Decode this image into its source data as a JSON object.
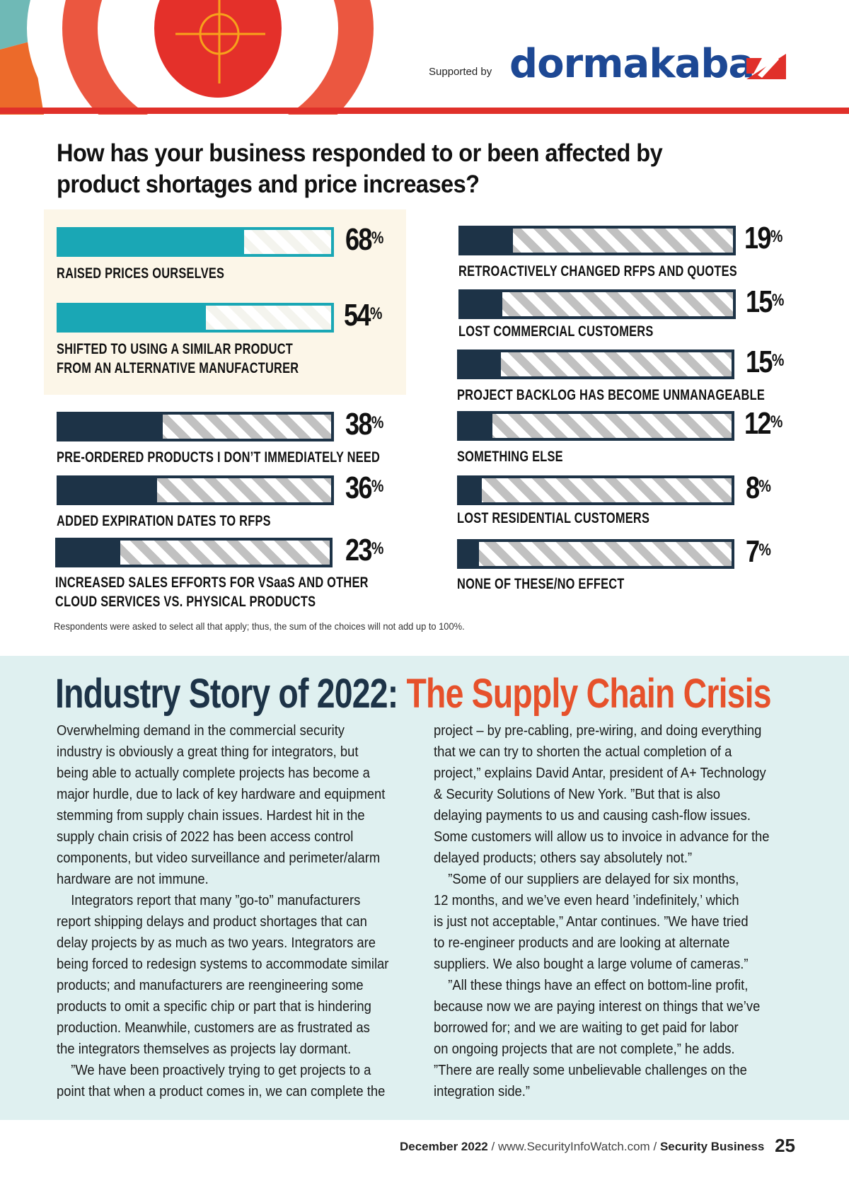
{
  "header": {
    "supported_by": "Supported by",
    "sponsor_logo": "dormakaba",
    "colors": {
      "rule": "#e0302a",
      "logo": "#1d4894",
      "target_red": "#e4302a",
      "target_ring": "#eb5740",
      "crosshair": "#f7a21b",
      "teal_corner": "#6fb9b6",
      "orange_corner": "#ec6a2a"
    }
  },
  "question": "How has your business responded to or been affected by product shortages and price increases?",
  "chart_data": {
    "type": "bar",
    "orientation": "horizontal",
    "title": "How has your business responded to or been affected by product shortages and price increases?",
    "unit": "%",
    "xlim": [
      0,
      100
    ],
    "grid": false,
    "legend": "none",
    "categories": [
      "RAISED PRICES OURSELVES",
      "SHIFTED TO USING A SIMILAR PRODUCT FROM AN ALTERNATIVE MANUFACTURER",
      "PRE-ORDERED PRODUCTS I DON’T IMMEDIATELY NEED",
      "ADDED EXPIRATION DATES TO RFPS",
      "INCREASED SALES EFFORTS FOR VSaaS AND OTHER CLOUD SERVICES VS. PHYSICAL PRODUCTS",
      "RETROACTIVELY CHANGED RFPS AND QUOTES",
      "LOST COMMERCIAL CUSTOMERS",
      "PROJECT BACKLOG HAS BECOME UNMANAGEABLE",
      "SOMETHING ELSE",
      "LOST RESIDENTIAL CUSTOMERS",
      "NONE OF THESE/NO EFFECT"
    ],
    "values": [
      68,
      54,
      38,
      36,
      23,
      19,
      15,
      15,
      12,
      8,
      7
    ],
    "highlighted": [
      true,
      true,
      false,
      false,
      false,
      false,
      false,
      false,
      false,
      false,
      false
    ],
    "colors": {
      "highlight": "#1aa7b5",
      "default": "#1d3347",
      "remainder_stripe": "#c1c1c1"
    },
    "footnote": "Respondents were asked to select all that apply; thus, the sum of the choices will not add up to 100%."
  },
  "bars_display": [
    {
      "pct": "68",
      "label_lines": [
        "RAISED PRICES OURSELVES"
      ]
    },
    {
      "pct": "54",
      "label_lines": [
        "SHIFTED TO USING A SIMILAR PRODUCT",
        "FROM AN ALTERNATIVE MANUFACTURER"
      ]
    },
    {
      "pct": "38",
      "label_lines": [
        "PRE-ORDERED PRODUCTS I DON’T IMMEDIATELY NEED"
      ]
    },
    {
      "pct": "36",
      "label_lines": [
        "ADDED EXPIRATION DATES TO RFPS"
      ]
    },
    {
      "pct": "23",
      "label_lines": [
        "INCREASED SALES EFFORTS FOR VSaaS AND OTHER",
        "CLOUD SERVICES VS. PHYSICAL PRODUCTS"
      ]
    },
    {
      "pct": "19",
      "label_lines": [
        "RETROACTIVELY CHANGED RFPS AND QUOTES"
      ]
    },
    {
      "pct": "15",
      "label_lines": [
        "LOST COMMERCIAL CUSTOMERS"
      ]
    },
    {
      "pct": "15",
      "label_lines": [
        "PROJECT BACKLOG HAS BECOME UNMANAGEABLE"
      ]
    },
    {
      "pct": "12",
      "label_lines": [
        "SOMETHING ELSE"
      ]
    },
    {
      "pct": "8",
      "label_lines": [
        "LOST RESIDENTIAL CUSTOMERS"
      ]
    },
    {
      "pct": "7",
      "label_lines": [
        "NONE OF THESE/NO EFFECT"
      ]
    }
  ],
  "percent_sign": "%",
  "story": {
    "title_part1": "Industry Story of 2022:",
    "title_part2": "The Supply Chain Crisis",
    "left_lines": [
      {
        "t": "Overwhelming demand in the commercial security",
        "i": false
      },
      {
        "t": "industry is obviously a great thing for integrators, but",
        "i": false
      },
      {
        "t": "being able to actually complete projects has become a",
        "i": false
      },
      {
        "t": "major hurdle, due to lack of key hardware and equipment",
        "i": false
      },
      {
        "t": "stemming from supply chain issues. Hardest hit in the",
        "i": false
      },
      {
        "t": "supply chain crisis of 2022 has been access control",
        "i": false
      },
      {
        "t": "components, but video surveillance and perimeter/alarm",
        "i": false
      },
      {
        "t": "hardware are not immune.",
        "i": false
      },
      {
        "t": "Integrators report that many ”go-to” manufacturers",
        "i": true
      },
      {
        "t": "report shipping delays and product shortages that can",
        "i": false
      },
      {
        "t": "delay projects by as much as two years. Integrators are",
        "i": false
      },
      {
        "t": "being forced to redesign systems to accommodate similar",
        "i": false
      },
      {
        "t": "products; and manufacturers are reengineering some",
        "i": false
      },
      {
        "t": "products to omit a specific chip or part that is hindering",
        "i": false
      },
      {
        "t": "production. Meanwhile, customers are as frustrated as",
        "i": false
      },
      {
        "t": "the integrators themselves as projects lay dormant.",
        "i": false
      },
      {
        "t": "”We have been proactively trying to get projects to a",
        "i": true
      },
      {
        "t": "point that when a product comes in, we can complete the",
        "i": false
      }
    ],
    "right_lines": [
      {
        "t": "project – by pre-cabling, pre-wiring, and doing everything",
        "i": false
      },
      {
        "t": "that we can try to shorten the actual completion of a",
        "i": false
      },
      {
        "t": "project,” explains David Antar, president of A+ Technology",
        "i": false
      },
      {
        "t": "& Security Solutions of New York. ”But that is also",
        "i": false
      },
      {
        "t": "delaying payments to us and causing cash-flow issues.",
        "i": false
      },
      {
        "t": "Some customers will allow us to invoice in advance for the",
        "i": false
      },
      {
        "t": "delayed products; others say absolutely not.”",
        "i": false
      },
      {
        "t": "”Some of our suppliers are delayed for six months,",
        "i": true
      },
      {
        "t": "12 months, and we’ve even heard ’indefinitely,’ which",
        "i": false
      },
      {
        "t": "is just not acceptable,” Antar continues. ”We have tried",
        "i": false
      },
      {
        "t": "to re-engineer products and are looking at alternate",
        "i": false
      },
      {
        "t": "suppliers. We also bought a large volume of cameras.”",
        "i": false
      },
      {
        "t": "”All these things have an effect on bottom-line profit,",
        "i": true
      },
      {
        "t": "because now we are paying interest on things that we’ve",
        "i": false
      },
      {
        "t": "borrowed for; and we are waiting to get paid for labor",
        "i": false
      },
      {
        "t": "on ongoing projects that are not complete,” he adds.",
        "i": false
      },
      {
        "t": "”There are really some unbelievable challenges on the",
        "i": false
      },
      {
        "t": "integration side.”",
        "i": false
      }
    ]
  },
  "footer": {
    "date": "December 2022",
    "separator": "/",
    "url": "www.SecurityInfoWatch.com",
    "publication": "Security Business",
    "page_number": "25"
  }
}
